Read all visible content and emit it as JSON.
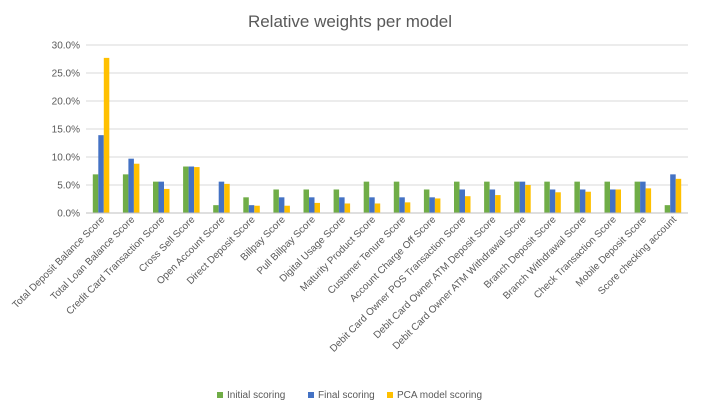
{
  "chart_data": {
    "type": "bar",
    "title": "Relative weights per model",
    "xlabel": "",
    "ylabel": "",
    "ylim": [
      0,
      0.3
    ],
    "yticks": [
      "0.0%",
      "5.0%",
      "10.0%",
      "15.0%",
      "20.0%",
      "25.0%",
      "30.0%"
    ],
    "grid": true,
    "legend_position": "bottom",
    "categories": [
      "Total Deposit Balance Score",
      "Total Loan Balance Score",
      "Credit Card Transaction Score",
      "Cross Sell Score",
      "Open Account Score",
      "Direct Deposit Score",
      "Billpay Score",
      "Pull Billpay Score",
      "Digital Usage Score",
      "Maturity Product Score",
      "Customer Tenure Score",
      "Account Charge Off Score",
      "Debit Card Owner POS Transaction Score",
      "Debit Card Owner ATM Deposit Score",
      "Debit Card Owner ATM Withdrawal Score",
      "Branch Deposit Score",
      "Branch Withdrawal Score",
      "Check Transaction Score",
      "Mobile Deposit Score",
      "Score checking account"
    ],
    "series": [
      {
        "name": "Initial scoring",
        "color": "#70AD47",
        "values": [
          0.069,
          0.069,
          0.056,
          0.083,
          0.014,
          0.028,
          0.042,
          0.042,
          0.042,
          0.056,
          0.056,
          0.042,
          0.056,
          0.056,
          0.056,
          0.056,
          0.056,
          0.056,
          0.056,
          0.014
        ]
      },
      {
        "name": "Final scoring",
        "color": "#4472C4",
        "values": [
          0.139,
          0.097,
          0.056,
          0.083,
          0.056,
          0.014,
          0.028,
          0.028,
          0.028,
          0.028,
          0.028,
          0.028,
          0.042,
          0.042,
          0.056,
          0.042,
          0.042,
          0.042,
          0.056,
          0.069
        ]
      },
      {
        "name": "PCA model scoring",
        "color": "#FFC000",
        "values": [
          0.277,
          0.088,
          0.043,
          0.082,
          0.052,
          0.013,
          0.013,
          0.018,
          0.017,
          0.017,
          0.019,
          0.026,
          0.03,
          0.032,
          0.05,
          0.037,
          0.038,
          0.042,
          0.044,
          0.061
        ]
      }
    ]
  }
}
